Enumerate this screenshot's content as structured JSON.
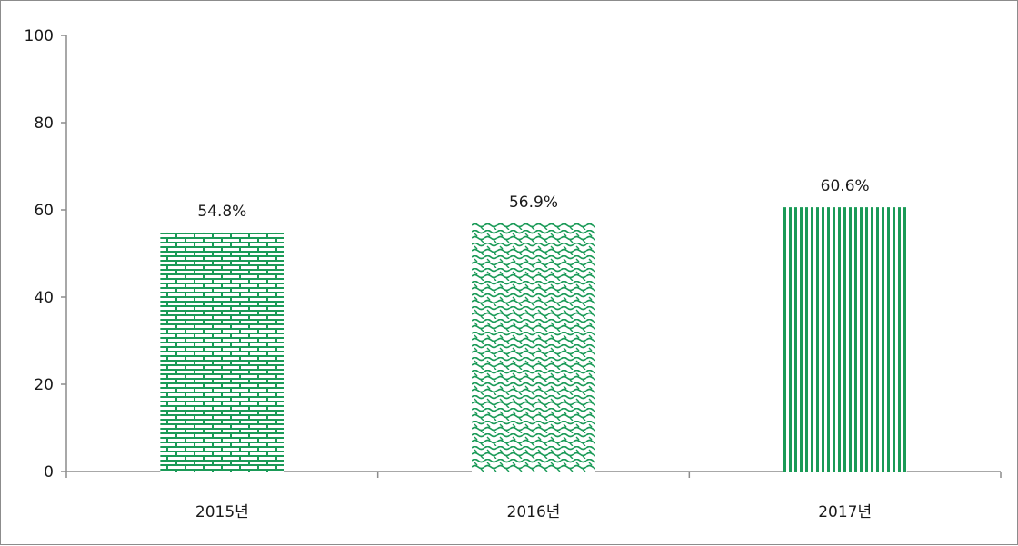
{
  "chart_data": {
    "type": "bar",
    "categories": [
      "2015년",
      "2016년",
      "2017년"
    ],
    "values": [
      54.8,
      56.9,
      60.6
    ],
    "data_labels": [
      "54.8%",
      "56.9%",
      "60.6%"
    ],
    "ylim": [
      0,
      100
    ],
    "yticks": [
      0,
      20,
      40,
      60,
      80,
      100
    ],
    "ytick_labels": [
      "0",
      "20",
      "40",
      "60",
      "80",
      "100"
    ],
    "title": "",
    "xlabel": "",
    "ylabel": "",
    "grid": false,
    "legend": "none",
    "bar_patterns": [
      "brick",
      "wave",
      "vertical-stripes"
    ],
    "bar_color": "#1a9a57",
    "axis_color": "#8c8c8c"
  }
}
